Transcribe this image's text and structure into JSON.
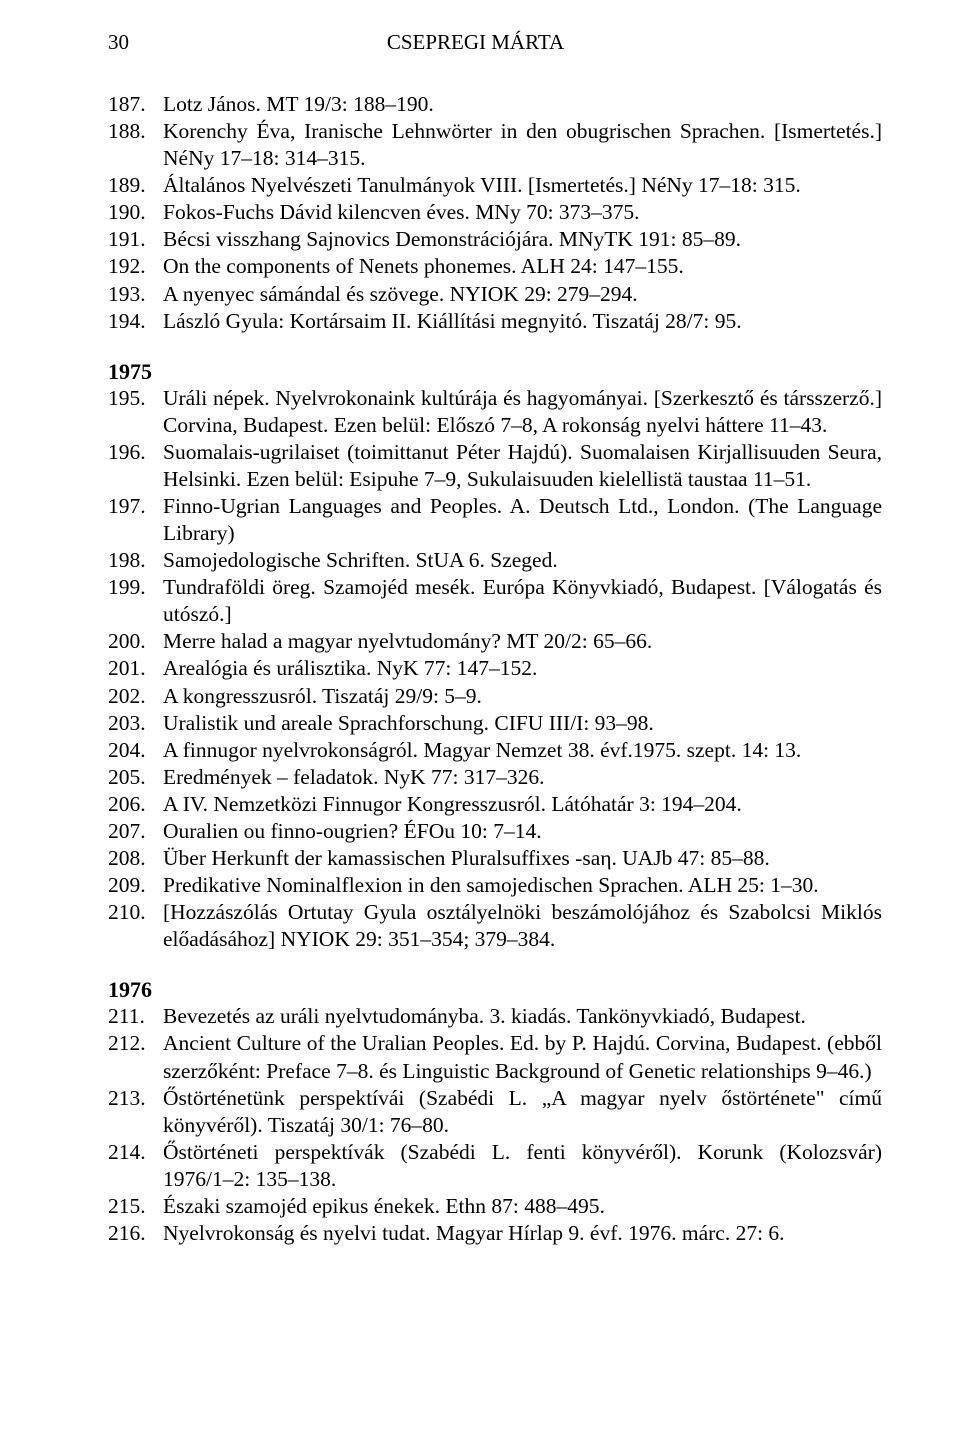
{
  "header": {
    "page_number": "30",
    "running_title": "CSEPREGI MÁRTA"
  },
  "sections": [
    {
      "year": null,
      "entries": [
        {
          "n": "187.",
          "t": "Lotz János. MT 19/3: 188–190."
        },
        {
          "n": "188.",
          "t": "Korenchy Éva, Iranische Lehnwörter in den obugrischen Sprachen. [Ismertetés.] NéNy 17–18: 314–315."
        },
        {
          "n": "189.",
          "t": "Általános Nyelvészeti Tanulmányok VIII. [Ismertetés.] NéNy 17–18: 315."
        },
        {
          "n": "190.",
          "t": "Fokos-Fuchs Dávid kilencven éves. MNy 70: 373–375."
        },
        {
          "n": "191.",
          "t": "Bécsi visszhang Sajnovics Demonstrációjára. MNyTK 191: 85–89."
        },
        {
          "n": "192.",
          "t": "On the components of Nenets phonemes. ALH 24: 147–155."
        },
        {
          "n": "193.",
          "t": "A nyenyec sámándal és szövege. NYIOK 29: 279–294."
        },
        {
          "n": "194.",
          "t": "László Gyula: Kortársaim II. Kiállítási megnyitó. Tiszatáj 28/7: 95."
        }
      ]
    },
    {
      "year": "1975",
      "entries": [
        {
          "n": "195.",
          "t": "Uráli népek. Nyelvrokonaink kultúrája és hagyományai. [Szerkesztő és társszerző.] Corvina, Budapest. Ezen belül: Előszó 7–8, A rokonság nyelvi háttere 11–43."
        },
        {
          "n": "196.",
          "t": "Suomalais-ugrilaiset (toimittanut Péter Hajdú). Suomalaisen Kirjallisuuden Seura, Helsinki. Ezen belül: Esipuhe 7–9, Sukulaisuuden kielellistä taustaa 11–51."
        },
        {
          "n": "197.",
          "t": "Finno-Ugrian Languages and Peoples. A. Deutsch Ltd., London. (The Language Library)"
        },
        {
          "n": "198.",
          "t": "Samojedologische Schriften. StUA 6. Szeged."
        },
        {
          "n": "199.",
          "t": "Tundraföldi öreg. Szamojéd mesék. Európa Könyvkiadó, Budapest. [Válogatás és utószó.]"
        },
        {
          "n": "200.",
          "t": "Merre halad a magyar nyelvtudomány? MT 20/2: 65–66."
        },
        {
          "n": "201.",
          "t": "Arealógia és urálisztika. NyK 77: 147–152."
        },
        {
          "n": "202.",
          "t": "A kongresszusról. Tiszatáj 29/9: 5–9."
        },
        {
          "n": "203.",
          "t": "Uralistik und areale Sprachforschung. CIFU III/I: 93–98."
        },
        {
          "n": "204.",
          "t": "A finnugor nyelvrokonságról. Magyar Nemzet 38. évf.1975. szept. 14: 13."
        },
        {
          "n": "205.",
          "t": "Eredmények – feladatok. NyK 77: 317–326."
        },
        {
          "n": "206.",
          "t": "A IV. Nemzetközi Finnugor Kongresszusról. Látóhatár 3: 194–204."
        },
        {
          "n": "207.",
          "t": "Ouralien ou finno-ougrien? ÉFOu 10: 7–14."
        },
        {
          "n": "208.",
          "t": "Über Herkunft der kamassischen Pluralsuffixes -saη. UAJb 47: 85–88."
        },
        {
          "n": "209.",
          "t": "Predikative Nominalflexion in den samojedischen Sprachen. ALH 25: 1–30."
        },
        {
          "n": "210.",
          "t": "[Hozzászólás Ortutay Gyula osztályelnöki beszámolójához és Szabolcsi Miklós előadásához] NYIOK 29: 351–354; 379–384."
        }
      ]
    },
    {
      "year": "1976",
      "entries": [
        {
          "n": "211.",
          "t": "Bevezetés az uráli nyelvtudományba. 3. kiadás. Tankönyvkiadó, Budapest."
        },
        {
          "n": "212.",
          "t": "Ancient Culture of the Uralian Peoples. Ed. by P. Hajdú. Corvina, Budapest. (ebből szerzőként: Preface 7–8. és Linguistic Background of Genetic relationships 9–46.)"
        },
        {
          "n": "213.",
          "t": "Őstörténetünk perspektívái (Szabédi L. „A magyar nyelv őstörténete\" című könyvéről). Tiszatáj 30/1: 76–80."
        },
        {
          "n": "214.",
          "t": "Őstörténeti perspektívák (Szabédi L. fenti könyvéről). Korunk (Kolozsvár) 1976/1–2: 135–138."
        },
        {
          "n": "215.",
          "t": "Északi szamojéd epikus énekek. Ethn 87: 488–495."
        },
        {
          "n": "216.",
          "t": "Nyelvrokonság és nyelvi tudat. Magyar Hírlap 9. évf. 1976. márc. 27: 6."
        }
      ]
    }
  ]
}
